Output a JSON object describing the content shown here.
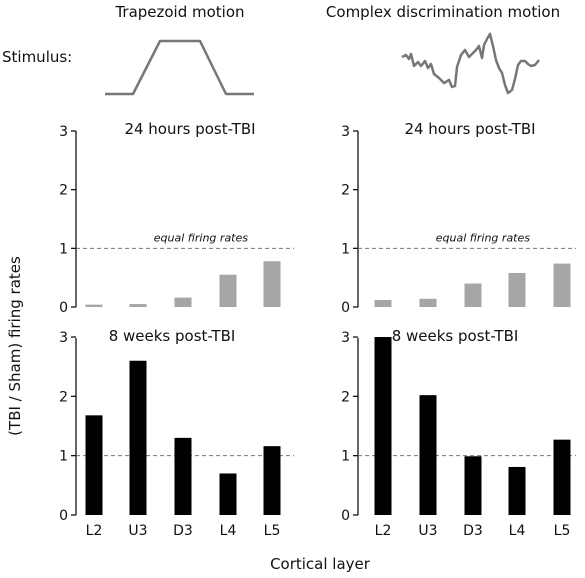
{
  "headers": {
    "left": "Trapezoid motion",
    "right": "Complex discrimination  motion",
    "stimulus_label": "Stimulus:"
  },
  "ylabel": "(TBI / Sham)  firing rates",
  "xlabel": "Cortical layer",
  "reference_label": "equal firing rates",
  "colors": {
    "gray_bar": "#a6a6a6",
    "black_bar": "#000000",
    "stimulus_line": "#777777",
    "reference_line": "#777777"
  },
  "chart_data": [
    {
      "type": "bar",
      "panel": "top-left",
      "title": "24 hours post-TBI",
      "categories": [
        "L2",
        "U3",
        "D3",
        "L4",
        "L5"
      ],
      "values": [
        0.04,
        0.05,
        0.16,
        0.55,
        0.78
      ],
      "ylim": [
        0,
        3
      ],
      "yticks": [
        0,
        1,
        2,
        3
      ],
      "reference_line": 1,
      "reference_label": "equal firing rates",
      "grid": false
    },
    {
      "type": "bar",
      "panel": "top-right",
      "title": "24 hours post-TBI",
      "categories": [
        "L2",
        "U3",
        "D3",
        "L4",
        "L5"
      ],
      "values": [
        0.12,
        0.14,
        0.4,
        0.58,
        0.74
      ],
      "ylim": [
        0,
        3
      ],
      "yticks": [
        0,
        1,
        2,
        3
      ],
      "reference_line": 1,
      "reference_label": "equal firing rates",
      "grid": false
    },
    {
      "type": "bar",
      "panel": "bottom-left",
      "title": "8 weeks post-TBI",
      "categories": [
        "L2",
        "U3",
        "D3",
        "L4",
        "L5"
      ],
      "values": [
        1.68,
        2.6,
        1.3,
        0.7,
        1.16
      ],
      "ylim": [
        0,
        3
      ],
      "yticks": [
        0,
        1,
        2,
        3
      ],
      "reference_line": 1,
      "grid": false
    },
    {
      "type": "bar",
      "panel": "bottom-right",
      "title": "8 weeks post-TBI",
      "categories": [
        "L2",
        "U3",
        "D3",
        "L4",
        "L5"
      ],
      "values": [
        3.0,
        2.02,
        0.99,
        0.81,
        1.27
      ],
      "ylim": [
        0,
        3
      ],
      "yticks": [
        0,
        1,
        2,
        3
      ],
      "reference_line": 1,
      "grid": false
    }
  ]
}
